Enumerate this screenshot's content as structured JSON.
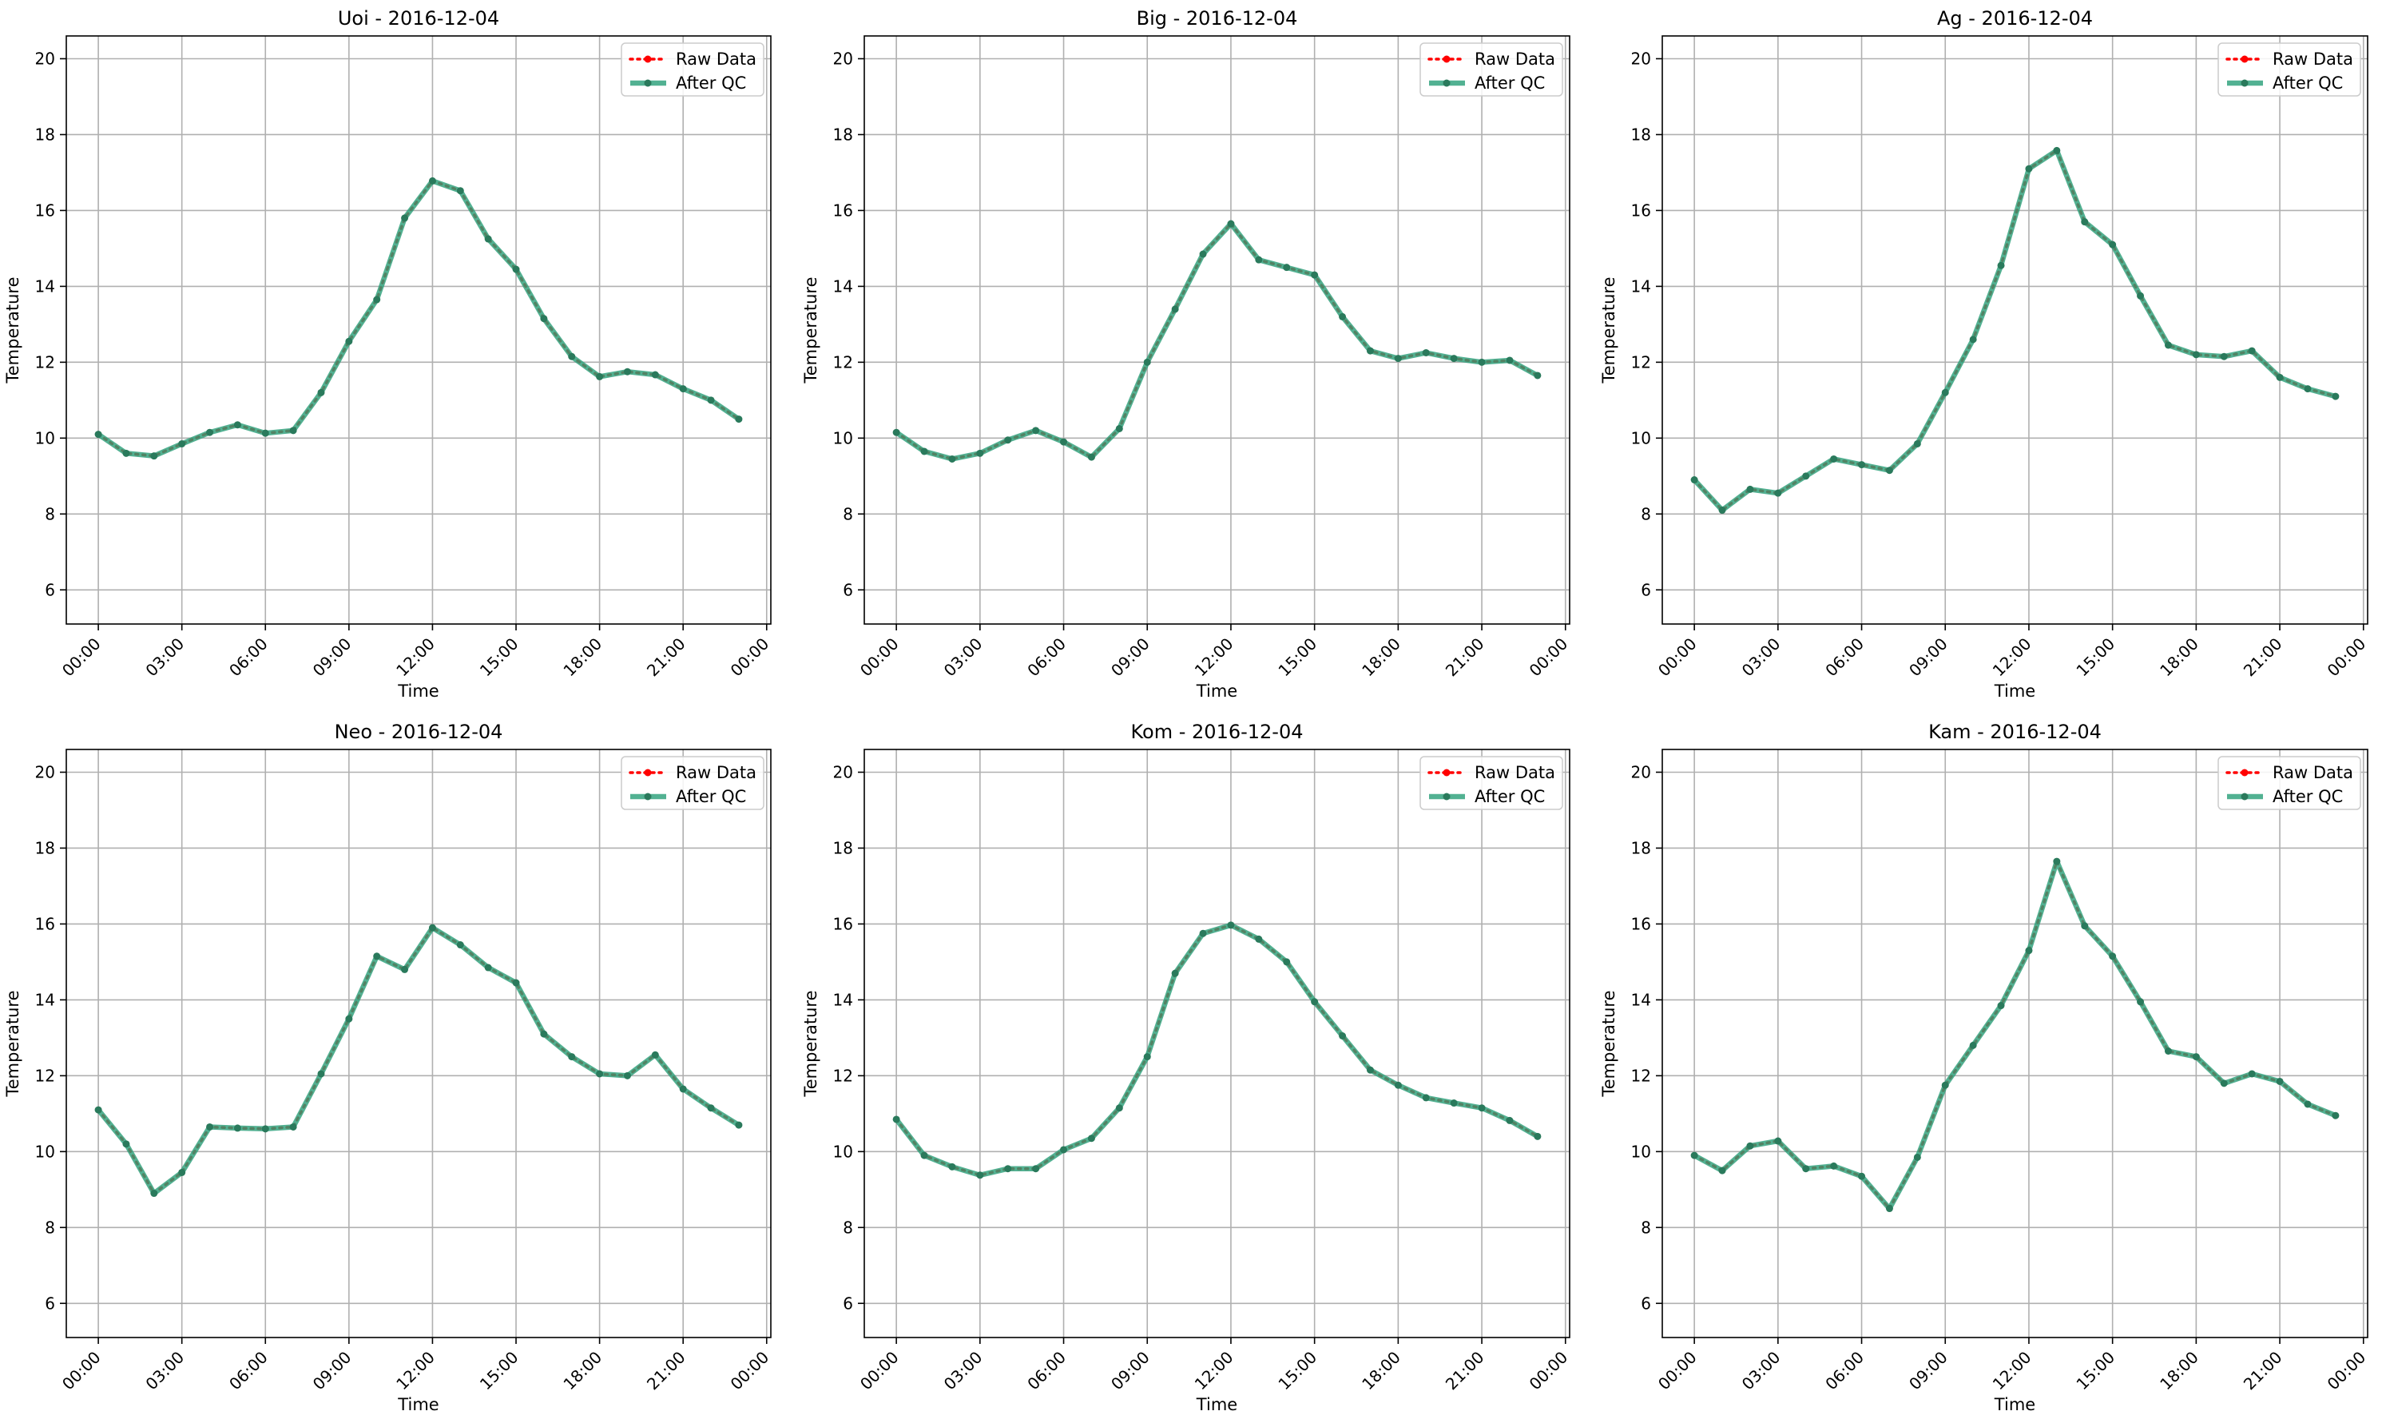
{
  "legend": {
    "raw_label": "Raw Data",
    "qc_label": "After QC"
  },
  "colors": {
    "raw": "#ff0000",
    "qc": "#2ca07a",
    "qc_marker": "#2a7a5c",
    "grid": "#b0b0b0"
  },
  "chart_data": [
    {
      "type": "line",
      "title": "Uoi - 2016-12-04",
      "xlabel": "Time",
      "ylabel": "Temperature",
      "xticks": [
        "00:00",
        "03:00",
        "06:00",
        "09:00",
        "12:00",
        "15:00",
        "18:00",
        "21:00",
        "00:00"
      ],
      "yticks": [
        "6",
        "8",
        "10",
        "12",
        "14",
        "16",
        "18",
        "20"
      ],
      "xlim_hours": [
        -1.15,
        24.15
      ],
      "ylim": [
        5.1,
        20.6
      ],
      "grid": true,
      "legend_position": "top-right",
      "x_hours": [
        0,
        1,
        2,
        3,
        4,
        5,
        6,
        7,
        8,
        9,
        10,
        11,
        12,
        13,
        14,
        15,
        16,
        17,
        18,
        19,
        20,
        21,
        22,
        23
      ],
      "series": [
        {
          "name": "Raw Data",
          "values": [
            10.1,
            9.6,
            9.53,
            9.85,
            10.15,
            10.35,
            10.13,
            10.2,
            11.2,
            12.55,
            13.65,
            15.8,
            16.78,
            16.52,
            15.25,
            14.45,
            13.15,
            12.15,
            11.62,
            11.75,
            11.67,
            11.3,
            11.0,
            10.5
          ]
        },
        {
          "name": "After QC",
          "values": [
            10.1,
            9.6,
            9.53,
            9.85,
            10.15,
            10.35,
            10.13,
            10.2,
            11.2,
            12.55,
            13.65,
            15.8,
            16.78,
            16.52,
            15.25,
            14.45,
            13.15,
            12.15,
            11.62,
            11.75,
            11.67,
            11.3,
            11.0,
            10.5
          ]
        }
      ]
    },
    {
      "type": "line",
      "title": "Big - 2016-12-04",
      "xlabel": "Time",
      "ylabel": "Temperature",
      "xticks": [
        "00:00",
        "03:00",
        "06:00",
        "09:00",
        "12:00",
        "15:00",
        "18:00",
        "21:00",
        "00:00"
      ],
      "yticks": [
        "6",
        "8",
        "10",
        "12",
        "14",
        "16",
        "18",
        "20"
      ],
      "xlim_hours": [
        -1.15,
        24.15
      ],
      "ylim": [
        5.1,
        20.6
      ],
      "grid": true,
      "legend_position": "top-right",
      "x_hours": [
        0,
        1,
        2,
        3,
        4,
        5,
        6,
        7,
        8,
        9,
        10,
        11,
        12,
        13,
        14,
        15,
        16,
        17,
        18,
        19,
        20,
        21,
        22,
        23
      ],
      "series": [
        {
          "name": "Raw Data",
          "values": [
            10.15,
            9.65,
            9.45,
            9.6,
            9.95,
            10.2,
            9.9,
            9.5,
            10.25,
            12.0,
            13.4,
            14.85,
            15.65,
            14.7,
            14.5,
            14.3,
            13.2,
            12.3,
            12.1,
            12.25,
            12.1,
            12.0,
            12.05,
            11.65
          ]
        },
        {
          "name": "After QC",
          "values": [
            10.15,
            9.65,
            9.45,
            9.6,
            9.95,
            10.2,
            9.9,
            9.5,
            10.25,
            12.0,
            13.4,
            14.85,
            15.65,
            14.7,
            14.5,
            14.3,
            13.2,
            12.3,
            12.1,
            12.25,
            12.1,
            12.0,
            12.05,
            11.65
          ]
        }
      ]
    },
    {
      "type": "line",
      "title": "Ag - 2016-12-04",
      "xlabel": "Time",
      "ylabel": "Temperature",
      "xticks": [
        "00:00",
        "03:00",
        "06:00",
        "09:00",
        "12:00",
        "15:00",
        "18:00",
        "21:00",
        "00:00"
      ],
      "yticks": [
        "6",
        "8",
        "10",
        "12",
        "14",
        "16",
        "18",
        "20"
      ],
      "xlim_hours": [
        -1.15,
        24.15
      ],
      "ylim": [
        5.1,
        20.6
      ],
      "grid": true,
      "legend_position": "top-right",
      "x_hours": [
        0,
        1,
        2,
        3,
        4,
        5,
        6,
        7,
        8,
        9,
        10,
        11,
        12,
        13,
        14,
        15,
        16,
        17,
        18,
        19,
        20,
        21,
        22,
        23
      ],
      "series": [
        {
          "name": "Raw Data",
          "values": [
            8.9,
            8.1,
            8.65,
            8.55,
            9.0,
            9.45,
            9.3,
            9.15,
            9.85,
            11.2,
            12.6,
            14.55,
            17.1,
            17.58,
            15.7,
            15.1,
            13.75,
            12.45,
            12.2,
            12.15,
            12.3,
            11.6,
            11.3,
            11.1
          ]
        },
        {
          "name": "After QC",
          "values": [
            8.9,
            8.1,
            8.65,
            8.55,
            9.0,
            9.45,
            9.3,
            9.15,
            9.85,
            11.2,
            12.6,
            14.55,
            17.1,
            17.58,
            15.7,
            15.1,
            13.75,
            12.45,
            12.2,
            12.15,
            12.3,
            11.6,
            11.3,
            11.1
          ]
        }
      ]
    },
    {
      "type": "line",
      "title": "Neo - 2016-12-04",
      "xlabel": "Time",
      "ylabel": "Temperature",
      "xticks": [
        "00:00",
        "03:00",
        "06:00",
        "09:00",
        "12:00",
        "15:00",
        "18:00",
        "21:00",
        "00:00"
      ],
      "yticks": [
        "6",
        "8",
        "10",
        "12",
        "14",
        "16",
        "18",
        "20"
      ],
      "xlim_hours": [
        -1.15,
        24.15
      ],
      "ylim": [
        5.1,
        20.6
      ],
      "grid": true,
      "legend_position": "top-right",
      "x_hours": [
        0,
        1,
        2,
        3,
        4,
        5,
        6,
        7,
        8,
        9,
        10,
        11,
        12,
        13,
        14,
        15,
        16,
        17,
        18,
        19,
        20,
        21,
        22,
        23
      ],
      "series": [
        {
          "name": "Raw Data",
          "values": [
            11.1,
            10.2,
            8.9,
            9.45,
            10.65,
            10.62,
            10.6,
            10.65,
            12.05,
            13.5,
            15.15,
            14.8,
            15.9,
            15.45,
            14.85,
            14.45,
            13.1,
            12.5,
            12.05,
            12.0,
            12.55,
            11.65,
            11.15,
            10.7
          ]
        },
        {
          "name": "After QC",
          "values": [
            11.1,
            10.2,
            8.9,
            9.45,
            10.65,
            10.62,
            10.6,
            10.65,
            12.05,
            13.5,
            15.15,
            14.8,
            15.9,
            15.45,
            14.85,
            14.45,
            13.1,
            12.5,
            12.05,
            12.0,
            12.55,
            11.65,
            11.15,
            10.7
          ]
        }
      ]
    },
    {
      "type": "line",
      "title": "Kom - 2016-12-04",
      "xlabel": "Time",
      "ylabel": "Temperature",
      "xticks": [
        "00:00",
        "03:00",
        "06:00",
        "09:00",
        "12:00",
        "15:00",
        "18:00",
        "21:00",
        "00:00"
      ],
      "yticks": [
        "6",
        "8",
        "10",
        "12",
        "14",
        "16",
        "18",
        "20"
      ],
      "xlim_hours": [
        -1.15,
        24.15
      ],
      "ylim": [
        5.1,
        20.6
      ],
      "grid": true,
      "legend_position": "top-right",
      "x_hours": [
        0,
        1,
        2,
        3,
        4,
        5,
        6,
        7,
        8,
        9,
        10,
        11,
        12,
        13,
        14,
        15,
        16,
        17,
        18,
        19,
        20,
        21,
        22,
        23
      ],
      "series": [
        {
          "name": "Raw Data",
          "values": [
            10.85,
            9.9,
            9.6,
            9.38,
            9.55,
            9.55,
            10.05,
            10.35,
            11.15,
            12.5,
            14.7,
            15.75,
            15.97,
            15.6,
            15.0,
            13.95,
            13.05,
            12.15,
            11.75,
            11.42,
            11.28,
            11.15,
            10.82,
            10.4
          ]
        },
        {
          "name": "After QC",
          "values": [
            10.85,
            9.9,
            9.6,
            9.38,
            9.55,
            9.55,
            10.05,
            10.35,
            11.15,
            12.5,
            14.7,
            15.75,
            15.97,
            15.6,
            15.0,
            13.95,
            13.05,
            12.15,
            11.75,
            11.42,
            11.28,
            11.15,
            10.82,
            10.4
          ]
        }
      ]
    },
    {
      "type": "line",
      "title": "Kam - 2016-12-04",
      "xlabel": "Time",
      "ylabel": "Temperature",
      "xticks": [
        "00:00",
        "03:00",
        "06:00",
        "09:00",
        "12:00",
        "15:00",
        "18:00",
        "21:00",
        "00:00"
      ],
      "yticks": [
        "6",
        "8",
        "10",
        "12",
        "14",
        "16",
        "18",
        "20"
      ],
      "xlim_hours": [
        -1.15,
        24.15
      ],
      "ylim": [
        5.1,
        20.6
      ],
      "grid": true,
      "legend_position": "top-right",
      "x_hours": [
        0,
        1,
        2,
        3,
        4,
        5,
        6,
        7,
        8,
        9,
        10,
        11,
        12,
        13,
        14,
        15,
        16,
        17,
        18,
        19,
        20,
        21,
        22,
        23
      ],
      "series": [
        {
          "name": "Raw Data",
          "values": [
            9.9,
            9.5,
            10.15,
            10.28,
            9.55,
            9.62,
            9.35,
            8.5,
            9.85,
            11.75,
            12.8,
            13.85,
            15.3,
            17.65,
            15.95,
            15.15,
            13.95,
            12.65,
            12.5,
            11.8,
            12.05,
            11.85,
            11.25,
            10.95
          ]
        },
        {
          "name": "After QC",
          "values": [
            9.9,
            9.5,
            10.15,
            10.28,
            9.55,
            9.62,
            9.35,
            8.5,
            9.85,
            11.75,
            12.8,
            13.85,
            15.3,
            17.65,
            15.95,
            15.15,
            13.95,
            12.65,
            12.5,
            11.8,
            12.05,
            11.85,
            11.25,
            10.95
          ]
        }
      ]
    }
  ]
}
